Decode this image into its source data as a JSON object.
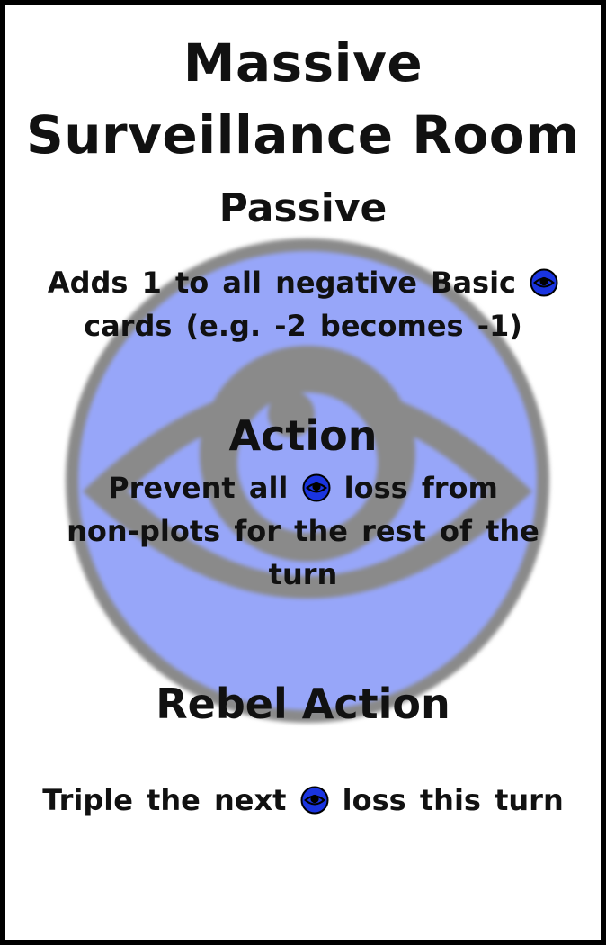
{
  "card": {
    "title_line1": "Massive",
    "title_line2": "Surveillance Room",
    "passive": {
      "heading": "Passive",
      "line1_pre": "Adds 1 to all negative Basic",
      "line2": "cards (e.g. -2 becomes -1)"
    },
    "action": {
      "heading": "Action",
      "line1_pre": "Prevent all",
      "line1_post": "loss from",
      "line2": "non-plots for the rest of the",
      "line3": "turn"
    },
    "rebel_action": {
      "heading": "Rebel Action",
      "line1_pre": "Triple the next",
      "line1_post": "loss this turn"
    }
  },
  "icons": {
    "resource": "eye-icon",
    "background": "eye-emblem-icon"
  },
  "colors": {
    "emblem_fill": "#97a6f9",
    "emblem_ring": "#8a8a8a",
    "icon_fill": "#1a34e0",
    "text": "#111111"
  }
}
